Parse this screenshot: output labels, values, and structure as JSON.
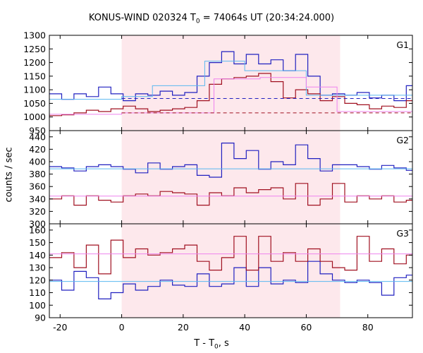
{
  "chart_data": {
    "type": "line",
    "title_prefix": "KONUS-WIND 020324 T",
    "title_sub": "0",
    "title_suffix": " = 74064s UT (20:34:24.000)",
    "xlabel_prefix": "T - T",
    "xlabel_sub": "0",
    "xlabel_suffix": ", s",
    "ylabel": "counts / sec",
    "xlim": [
      -23.5,
      94.5
    ],
    "xticks": [
      -20,
      0,
      20,
      40,
      60,
      80
    ],
    "shaded_interval": [
      0,
      71
    ],
    "colors": {
      "blue": "#2020c0",
      "red": "#a01020",
      "cyan": "#5ab8f0",
      "pink": "#ee82ee",
      "shade": "#fde8ec"
    },
    "bin_edges": [
      -23.5,
      -19.5,
      -15.5,
      -11.5,
      -7.5,
      -3.5,
      0.5,
      4.5,
      8.5,
      12.5,
      16.5,
      20.5,
      24.5,
      28.5,
      32.5,
      36.5,
      40.5,
      44.5,
      48.5,
      52.5,
      56.5,
      60.5,
      64.5,
      68.5,
      72.5,
      76.5,
      80.5,
      84.5,
      88.5,
      92.5,
      94.5
    ],
    "panels": [
      {
        "label": "G1",
        "ylim": [
          950,
          1300
        ],
        "yticks": [
          950,
          1000,
          1050,
          1100,
          1150,
          1200,
          1250,
          1300
        ],
        "series": [
          {
            "color": "blue",
            "values": [
              1085,
              1065,
              1085,
              1075,
              1110,
              1085,
              1060,
              1085,
              1080,
              1095,
              1080,
              1090,
              1150,
              1200,
              1240,
              1195,
              1230,
              1195,
              1210,
              1170,
              1230,
              1150,
              1080,
              1085,
              1080,
              1090,
              1070,
              1080,
              1060,
              1115
            ]
          },
          {
            "color": "red",
            "values": [
              1005,
              1008,
              1015,
              1025,
              1020,
              1030,
              1040,
              1030,
              1020,
              1025,
              1030,
              1035,
              1060,
              1120,
              1140,
              1145,
              1150,
              1160,
              1130,
              1070,
              1100,
              1085,
              1060,
              1075,
              1050,
              1045,
              1030,
              1040,
              1035,
              1060
            ]
          }
        ],
        "fits": [
          {
            "color": "cyan",
            "style": "solid",
            "x": [
              -23.5,
              0,
              0,
              10,
              10,
              27,
              27,
              40,
              40,
              60,
              60,
              94.5
            ],
            "y": [
              1065,
              1065,
              1075,
              1075,
              1115,
              1115,
              1205,
              1205,
              1170,
              1170,
              1080,
              1080
            ]
          },
          {
            "color": "pink",
            "style": "solid",
            "x": [
              -23.5,
              0,
              0,
              30,
              30,
              45,
              45,
              60,
              60,
              70,
              70,
              94.5
            ],
            "y": [
              1010,
              1010,
              1015,
              1015,
              1140,
              1140,
              1145,
              1145,
              1110,
              1110,
              1020,
              1020
            ]
          },
          {
            "color": "blue",
            "style": "dashed",
            "x": [
              0,
              94.5
            ],
            "y": [
              1068,
              1068
            ]
          },
          {
            "color": "red",
            "style": "dashed",
            "x": [
              0,
              94.5
            ],
            "y": [
              1015,
              1015
            ]
          }
        ]
      },
      {
        "label": "G2",
        "ylim": [
          300,
          450
        ],
        "yticks": [
          300,
          320,
          340,
          360,
          380,
          400,
          420,
          440
        ],
        "series": [
          {
            "color": "blue",
            "values": [
              392,
              390,
              385,
              392,
              395,
              392,
              388,
              382,
              398,
              388,
              392,
              395,
              378,
              375,
              430,
              405,
              418,
              388,
              400,
              395,
              427,
              405,
              385,
              395,
              395,
              392,
              388,
              394,
              390,
              386
            ]
          },
          {
            "color": "red",
            "values": [
              340,
              345,
              330,
              345,
              338,
              335,
              345,
              348,
              345,
              352,
              350,
              348,
              330,
              350,
              345,
              358,
              350,
              355,
              358,
              340,
              365,
              330,
              340,
              365,
              335,
              345,
              340,
              345,
              335,
              338
            ]
          }
        ],
        "fits": [
          {
            "color": "cyan",
            "style": "solid",
            "x": [
              -23.5,
              94.5
            ],
            "y": [
              388.5,
              388.5
            ]
          },
          {
            "color": "pink",
            "style": "solid",
            "x": [
              -23.5,
              94.5
            ],
            "y": [
              344.5,
              344.5
            ]
          }
        ]
      },
      {
        "label": "G3",
        "ylim": [
          90,
          165
        ],
        "yticks": [
          90,
          100,
          110,
          120,
          130,
          140,
          150,
          160
        ],
        "series": [
          {
            "color": "blue",
            "values": [
              120,
              112,
              127,
              122,
              105,
              110,
              117,
              112,
              115,
              120,
              116,
              115,
              125,
              115,
              117,
              130,
              115,
              130,
              117,
              120,
              118,
              135,
              125,
              120,
              118,
              120,
              118,
              108,
              122,
              124
            ]
          },
          {
            "color": "red",
            "values": [
              138,
              142,
              130,
              148,
              125,
              152,
              138,
              145,
              140,
              142,
              145,
              148,
              135,
              128,
              138,
              155,
              128,
              155,
              135,
              142,
              135,
              145,
              135,
              130,
              128,
              155,
              135,
              145,
              133,
              140
            ]
          }
        ],
        "fits": [
          {
            "color": "cyan",
            "style": "solid",
            "x": [
              -23.5,
              94.5
            ],
            "y": [
              119,
              119
            ]
          },
          {
            "color": "pink",
            "style": "solid",
            "x": [
              -23.5,
              94.5
            ],
            "y": [
              141,
              141
            ]
          }
        ]
      }
    ]
  }
}
